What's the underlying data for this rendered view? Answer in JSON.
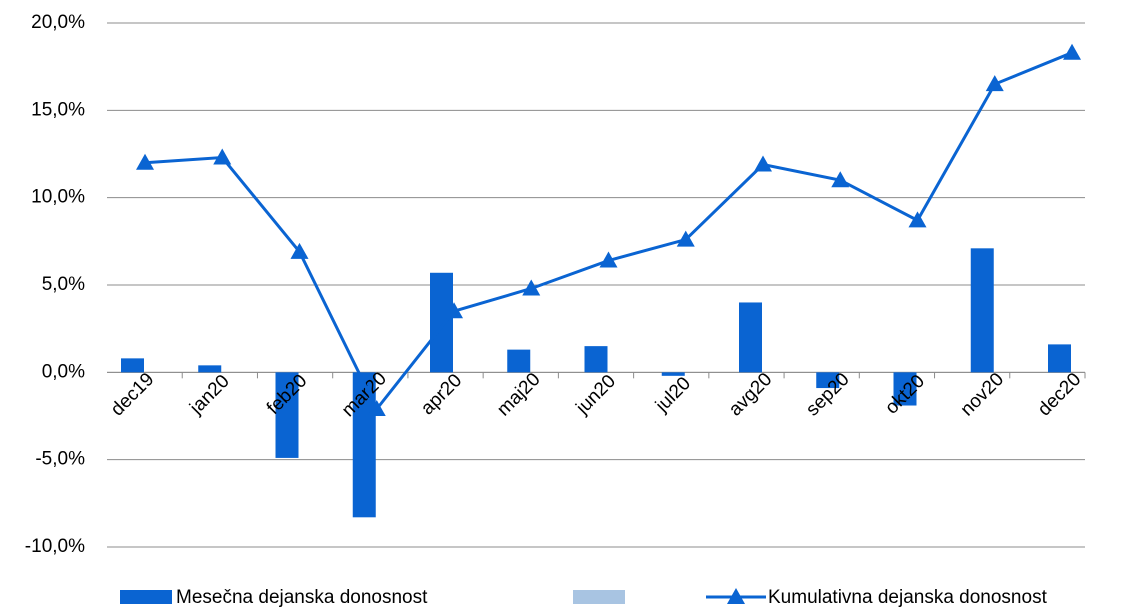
{
  "chart_data": {
    "type": "bar-line",
    "categories": [
      "dec19",
      "jan20",
      "feb20",
      "mar20",
      "apr20",
      "maj20",
      "jun20",
      "jul20",
      "avg20",
      "sep20",
      "okt20",
      "nov20",
      "dec20"
    ],
    "series": [
      {
        "name": "Mesečna dejanska donosnost",
        "type": "bar",
        "color": "#0a64d2",
        "values": [
          0.8,
          0.4,
          -4.9,
          -8.3,
          5.7,
          1.3,
          1.5,
          -0.2,
          4.0,
          -0.9,
          -1.9,
          7.1,
          1.6
        ]
      },
      {
        "name": "Kumulativna dejanska donosnost",
        "type": "line",
        "color": "#0a64d2",
        "values": [
          12.0,
          12.3,
          6.9,
          -2.1,
          3.5,
          4.8,
          6.4,
          7.6,
          11.9,
          11.0,
          8.7,
          16.5,
          18.3
        ]
      }
    ],
    "ylim": [
      -10,
      20
    ],
    "yticks": [
      {
        "value": -10,
        "label": "-10,0%"
      },
      {
        "value": -5,
        "label": "-5,0%"
      },
      {
        "value": 0,
        "label": "0,0%"
      },
      {
        "value": 5,
        "label": "5,0%"
      },
      {
        "value": 10,
        "label": "10,0%"
      },
      {
        "value": 15,
        "label": "15,0%"
      },
      {
        "value": 20,
        "label": "20,0%"
      }
    ],
    "grid": true
  }
}
